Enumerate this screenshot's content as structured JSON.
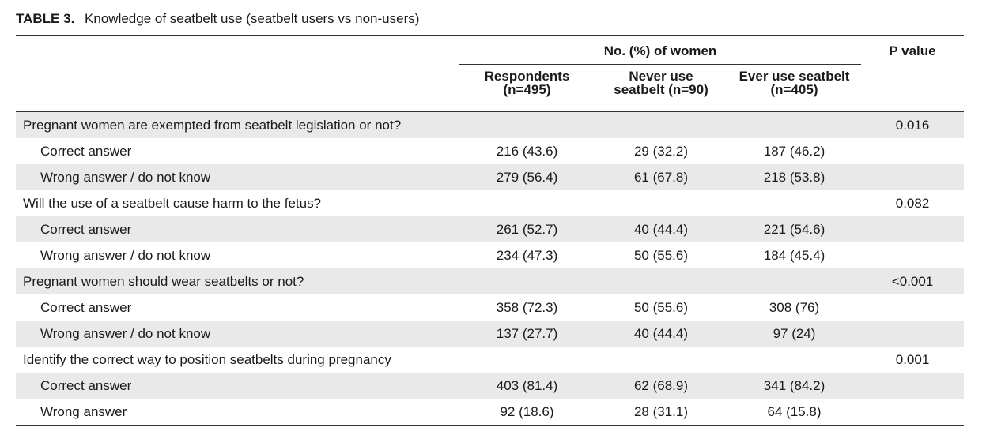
{
  "caption": {
    "label": "TABLE 3.",
    "title": "Knowledge of seatbelt use (seatbelt users vs non-users)"
  },
  "header": {
    "group_label": "No. (%) of women",
    "p_value_label": "P value",
    "columns": [
      {
        "line1": "Respondents",
        "line2": "(n=495)"
      },
      {
        "line1": "Never use",
        "line2": "seatbelt (n=90)"
      },
      {
        "line1": "Ever use seatbelt",
        "line2": "(n=405)"
      }
    ]
  },
  "rows": [
    {
      "label": "Pregnant women are exempted from seatbelt legislation or not?",
      "values": [
        "",
        "",
        ""
      ],
      "p": "0.016"
    },
    {
      "label": "Correct answer",
      "values": [
        "216 (43.6)",
        "29 (32.2)",
        "187 (46.2)"
      ],
      "p": ""
    },
    {
      "label": "Wrong answer / do not know",
      "values": [
        "279 (56.4)",
        "61 (67.8)",
        "218 (53.8)"
      ],
      "p": ""
    },
    {
      "label": "Will the use of a seatbelt cause harm to the fetus?",
      "values": [
        "",
        "",
        ""
      ],
      "p": "0.082"
    },
    {
      "label": "Correct answer",
      "values": [
        "261 (52.7)",
        "40 (44.4)",
        "221 (54.6)"
      ],
      "p": ""
    },
    {
      "label": "Wrong answer / do not know",
      "values": [
        "234 (47.3)",
        "50 (55.6)",
        "184 (45.4)"
      ],
      "p": ""
    },
    {
      "label": "Pregnant women should wear seatbelts or not?",
      "values": [
        "",
        "",
        ""
      ],
      "p": "<0.001"
    },
    {
      "label": "Correct answer",
      "values": [
        "358 (72.3)",
        "50 (55.6)",
        "308 (76)"
      ],
      "p": ""
    },
    {
      "label": "Wrong answer / do not know",
      "values": [
        "137 (27.7)",
        "40 (44.4)",
        "97 (24)"
      ],
      "p": ""
    },
    {
      "label": "Identify the correct way to position seatbelts during pregnancy",
      "values": [
        "",
        "",
        ""
      ],
      "p": "0.001"
    },
    {
      "label": "Correct answer",
      "values": [
        "403 (81.4)",
        "62 (68.9)",
        "341 (84.2)"
      ],
      "p": ""
    },
    {
      "label": "Wrong answer",
      "values": [
        "92 (18.6)",
        "28 (31.1)",
        "64 (15.8)"
      ],
      "p": ""
    }
  ]
}
